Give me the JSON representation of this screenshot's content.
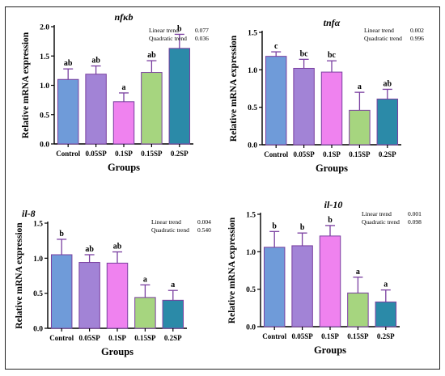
{
  "colors": {
    "series": [
      "#6f9bd9",
      "#a283d6",
      "#ef82ef",
      "#a6d57f",
      "#2b8aa8"
    ],
    "error_bar": "#7a3fa0",
    "axis": "#000000"
  },
  "chart_data": [
    {
      "type": "bar",
      "title": "nfκb",
      "xlabel": "Groups",
      "ylabel": "Relative mRNA expression",
      "categories": [
        "Control",
        "0.05SP",
        "0.1SP",
        "0.15SP",
        "0.2SP"
      ],
      "values": [
        1.1,
        1.19,
        0.72,
        1.22,
        1.63
      ],
      "errors": [
        0.18,
        0.14,
        0.15,
        0.2,
        0.24
      ],
      "significance": [
        "ab",
        "ab",
        "a",
        "ab",
        "b"
      ],
      "ylim": [
        0,
        2.0
      ],
      "yticks": [
        "0.0",
        "0.5",
        "1.0",
        "1.5",
        "2.0"
      ],
      "trend": {
        "linear_label": "Linear trend",
        "linear_value": "0.077",
        "quadratic_label": "Quadratic trend",
        "quadratic_value": "0.036"
      }
    },
    {
      "type": "bar",
      "title": "tnfα",
      "xlabel": "Groups",
      "ylabel": "Relative mRNA expression",
      "categories": [
        "Control",
        "0.05SP",
        "0.1SP",
        "0.15SP",
        "0.2SP"
      ],
      "values": [
        1.18,
        1.02,
        0.97,
        0.46,
        0.61
      ],
      "errors": [
        0.06,
        0.12,
        0.15,
        0.24,
        0.13
      ],
      "significance": [
        "c",
        "bc",
        "bc",
        "a",
        "ab"
      ],
      "ylim": [
        0,
        1.5
      ],
      "yticks": [
        "0.0",
        "0.5",
        "1.0",
        "1.5"
      ],
      "trend": {
        "linear_label": "Linear trend",
        "linear_value": "0.002",
        "quadratic_label": "Quadratic trend",
        "quadratic_value": "0.996"
      }
    },
    {
      "type": "bar",
      "title": "il-8",
      "xlabel": "Groups",
      "ylabel": "Relative mRNA expression",
      "categories": [
        "Control",
        "0.05SP",
        "0.1SP",
        "0.15SP",
        "0.2SP"
      ],
      "values": [
        1.05,
        0.94,
        0.93,
        0.44,
        0.4
      ],
      "errors": [
        0.22,
        0.11,
        0.16,
        0.18,
        0.14
      ],
      "significance": [
        "b",
        "ab",
        "ab",
        "a",
        "a"
      ],
      "ylim": [
        0,
        1.5
      ],
      "yticks": [
        "0.0",
        "0.5",
        "1.0",
        "1.5"
      ],
      "trend": {
        "linear_label": "Linear trend",
        "linear_value": "0.004",
        "quadratic_label": "Quadratic trend",
        "quadratic_value": "0.540"
      }
    },
    {
      "type": "bar",
      "title": "il-10",
      "xlabel": "Groups",
      "ylabel": "Relative mRNA expression",
      "categories": [
        "Control",
        "0.05SP",
        "0.1SP",
        "0.15SP",
        "0.2SP"
      ],
      "values": [
        1.06,
        1.08,
        1.21,
        0.45,
        0.33
      ],
      "errors": [
        0.21,
        0.17,
        0.14,
        0.21,
        0.16
      ],
      "significance": [
        "b",
        "b",
        "b",
        "a",
        "a"
      ],
      "ylim": [
        0,
        1.5
      ],
      "yticks": [
        "0.0",
        "0.5",
        "1.0",
        "1.5"
      ],
      "trend": {
        "linear_label": "Linear trend",
        "linear_value": "0.001",
        "quadratic_label": "Quadratic trend",
        "quadratic_value": "0.098"
      }
    }
  ]
}
